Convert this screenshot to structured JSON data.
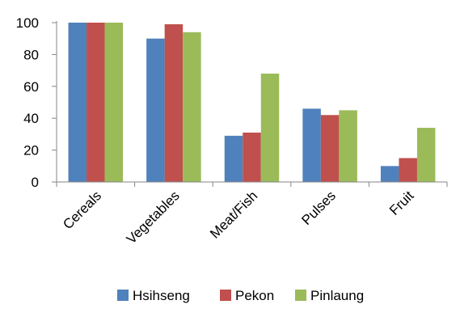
{
  "chart_data": {
    "type": "bar",
    "categories": [
      "Cereals",
      "Vegetables",
      "Meat/Fish",
      "Pulses",
      "Fruit"
    ],
    "series": [
      {
        "name": "Hsihseng",
        "color": "#4F81BD",
        "values": [
          100,
          90,
          29,
          46,
          10
        ]
      },
      {
        "name": "Pekon",
        "color": "#C0504D",
        "values": [
          100,
          99,
          31,
          42,
          15
        ]
      },
      {
        "name": "Pinlaung",
        "color": "#9BBB59",
        "values": [
          100,
          94,
          68,
          45,
          34
        ]
      }
    ],
    "yticks": [
      "0",
      "20",
      "40",
      "60",
      "80",
      "100"
    ],
    "ylim": [
      0,
      100
    ],
    "grid": false,
    "legend_position": "bottom"
  }
}
